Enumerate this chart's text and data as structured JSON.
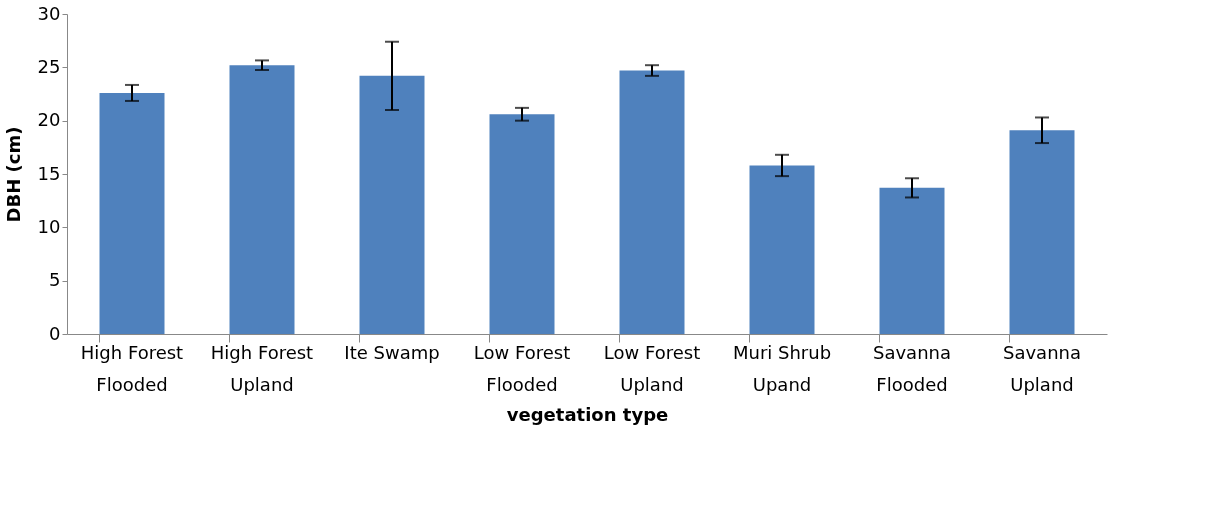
{
  "chart_data": {
    "type": "bar",
    "xlabel": "vegetation type",
    "ylabel": "DBH (cm)",
    "categories": [
      "High Forest Flooded",
      "High Forest Upland",
      "Ite Swamp",
      "Low Forest Flooded",
      "Low Forest Upland",
      "Muri Shrub Upand",
      "Savanna Flooded",
      "Savanna Upland"
    ],
    "values": [
      22.6,
      25.2,
      24.2,
      20.6,
      24.7,
      15.8,
      13.7,
      19.1
    ],
    "errors": [
      0.75,
      0.45,
      [
        21.0,
        27.4
      ],
      0.6,
      0.5,
      1.0,
      0.9,
      1.2
    ],
    "color": "#4f81bd",
    "ylim": [
      0,
      30
    ],
    "yticks": [
      0,
      5,
      10,
      15,
      20,
      25,
      30
    ],
    "grid": false
  }
}
